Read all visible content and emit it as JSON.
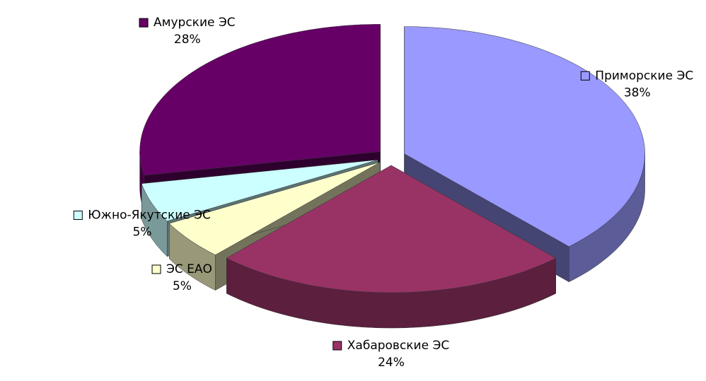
{
  "chart_data": {
    "type": "pie",
    "categories": [
      "Приморские ЭС",
      "Хабаровские ЭС",
      "ЭС ЕАО",
      "Южно-Якутские ЭС",
      "Амурские ЭС"
    ],
    "values": [
      38,
      24,
      5,
      5,
      28
    ],
    "value_labels": [
      "38%",
      "24%",
      "5%",
      "5%",
      "28%"
    ],
    "colors": [
      "#9999ff",
      "#993366",
      "#ffffcc",
      "#ccffff",
      "#660066"
    ]
  }
}
